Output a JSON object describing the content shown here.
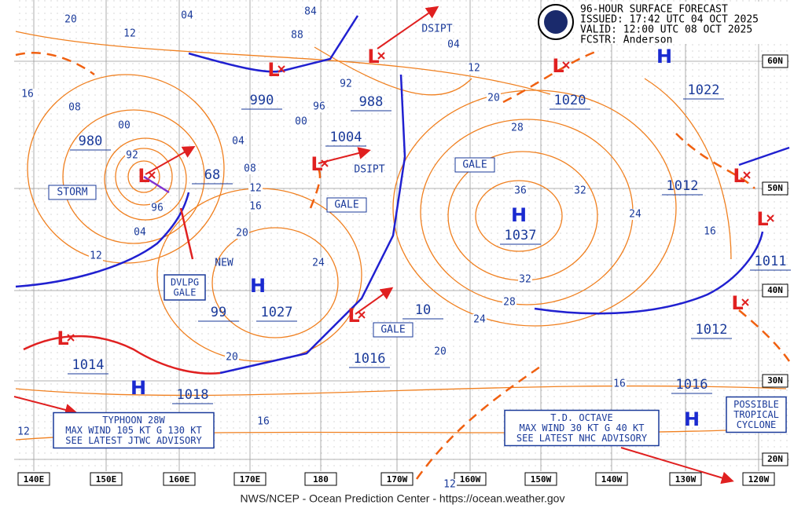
{
  "header": {
    "lines": [
      "96-HOUR SURFACE FORECAST",
      "ISSUED: 17:42 UTC 04 OCT 2025",
      "VALID: 12:00 UTC 08 OCT 2025",
      "FCSTR: Anderson"
    ]
  },
  "footer": "NWS/NCEP - Ocean Prediction Center - https://ocean.weather.gov",
  "centers": [
    "H",
    "H",
    "H",
    "H",
    "H",
    "L",
    "L",
    "L",
    "L",
    "L",
    "L",
    "L",
    "L",
    "L",
    "L"
  ],
  "pressures": [
    "990",
    "988",
    "1004",
    "980",
    "68",
    "1020",
    "1022",
    "1012",
    "1037",
    "1011",
    "99",
    "1027",
    "10",
    "1012",
    "1014",
    "1016",
    "1018",
    "1016"
  ],
  "isobar_labels": [
    "20",
    "04",
    "12",
    "84",
    "88",
    "16",
    "08",
    "00",
    "92",
    "96",
    "04",
    "12",
    "92",
    "96",
    "00",
    "04",
    "08",
    "12",
    "16",
    "20",
    "24",
    "20",
    "16",
    "12",
    "12",
    "16",
    "20",
    "24",
    "28",
    "32",
    "36",
    "32",
    "28",
    "24",
    "20",
    "16",
    "12",
    "04"
  ],
  "notes": [
    "STORM",
    "GALE",
    "GALE",
    "GALE",
    "DSIPT",
    "DSIPT",
    "NEW"
  ],
  "boxes": [
    [
      "DVLPG",
      "GALE"
    ],
    [
      "TYPHOON 28W",
      "MAX WIND 105 KT G 130 KT",
      "SEE LATEST JTWC ADVISORY"
    ],
    [
      "T.D. OCTAVE",
      "MAX WIND 30 KT G 40 KT",
      "SEE LATEST NHC ADVISORY"
    ],
    [
      "POSSIBLE",
      "TROPICAL",
      "CYCLONE"
    ]
  ],
  "longitudes": [
    "140E",
    "150E",
    "160E",
    "170E",
    "180",
    "170W",
    "160W",
    "150W",
    "140W",
    "130W",
    "120W"
  ],
  "latitudes": [
    "60N",
    "50N",
    "40N",
    "30N",
    "20N"
  ]
}
